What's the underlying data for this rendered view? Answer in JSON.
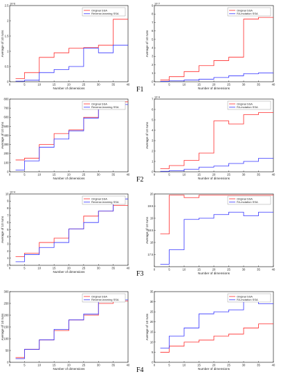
{
  "figure": {
    "row_labels": [
      "F1",
      "F2",
      "F3",
      "F4"
    ],
    "colors": {
      "original": "#ff2a2a",
      "variant": "#3333ff"
    }
  },
  "chart_data": [
    {
      "id": "f1-left",
      "type": "line",
      "title": "",
      "xlabel": "Number of dimensions",
      "ylabel": "Average of 10 runs",
      "xlim": [
        0,
        40
      ],
      "ylim": [
        0,
        2.5
      ],
      "xticks": [
        0,
        5,
        10,
        15,
        20,
        25,
        30,
        35,
        40
      ],
      "yticks": [
        0,
        0.5,
        1,
        1.5,
        2,
        2.5
      ],
      "yexponent": "10^6",
      "legend_position": "top-right",
      "grid": false,
      "series": [
        {
          "name": "Original SSA",
          "color": "#ff2a2a",
          "x": [
            2,
            5,
            10,
            15,
            20,
            25,
            30,
            35
          ],
          "y": [
            0.1,
            0.3,
            0.8,
            0.95,
            1.1,
            1.12,
            1.2,
            2.05
          ]
        },
        {
          "name": "Reverse-learning SSA",
          "color": "#3333ff",
          "x": [
            2,
            5,
            10,
            15,
            20,
            25,
            30,
            35
          ],
          "y": [
            0.02,
            0.05,
            0.3,
            0.4,
            0.5,
            1.1,
            0.95,
            1.2
          ]
        }
      ]
    },
    {
      "id": "f1-right",
      "type": "line",
      "title": "",
      "xlabel": "Number of dimensions",
      "ylabel": "Average of 10 runs",
      "xlim": [
        0,
        40
      ],
      "ylim": [
        0,
        9
      ],
      "xticks": [
        0,
        5,
        10,
        15,
        20,
        25,
        30,
        35,
        40
      ],
      "yticks": [
        0,
        1,
        2,
        3,
        4,
        5,
        6,
        7,
        8,
        9
      ],
      "yexponent": "10^7",
      "legend_position": "top-right",
      "grid": false,
      "series": [
        {
          "name": "Original SSA",
          "color": "#ff2a2a",
          "x": [
            2,
            5,
            10,
            15,
            20,
            25,
            30,
            35
          ],
          "y": [
            0.2,
            0.6,
            1.2,
            1.9,
            2.5,
            2.9,
            7.4,
            7.6
          ]
        },
        {
          "name": "FA-mutation SSA",
          "color": "#3333ff",
          "x": [
            2,
            5,
            10,
            15,
            20,
            25,
            30,
            35
          ],
          "y": [
            0.05,
            0.1,
            0.2,
            0.3,
            0.5,
            0.7,
            0.95,
            1.05
          ]
        }
      ]
    },
    {
      "id": "f2-left",
      "type": "line",
      "title": "",
      "xlabel": "Number of dimensions",
      "ylabel": "Average of 10 runs",
      "xlim": [
        0,
        40
      ],
      "ylim": [
        0,
        800
      ],
      "xticks": [
        0,
        5,
        10,
        15,
        20,
        25,
        30,
        35,
        40
      ],
      "yticks": [
        0,
        100,
        200,
        300,
        400,
        500,
        600,
        700,
        800
      ],
      "yexponent": "",
      "legend_position": "top-right",
      "grid": false,
      "series": [
        {
          "name": "Original SSA",
          "color": "#ff2a2a",
          "x": [
            2,
            5,
            10,
            15,
            20,
            25,
            30,
            35
          ],
          "y": [
            130,
            150,
            300,
            420,
            460,
            600,
            710,
            770
          ]
        },
        {
          "name": "Reverse-learning SSA",
          "color": "#3333ff",
          "x": [
            2,
            5,
            10,
            15,
            20,
            25,
            30,
            35
          ],
          "y": [
            20,
            120,
            270,
            360,
            450,
            590,
            700,
            740
          ]
        }
      ]
    },
    {
      "id": "f2-right",
      "type": "line",
      "title": "",
      "xlabel": "Number of dimensions",
      "ylabel": "Average of 10 runs",
      "xlim": [
        0,
        40
      ],
      "ylim": [
        0,
        7
      ],
      "xticks": [
        0,
        5,
        10,
        15,
        20,
        25,
        30,
        35,
        40
      ],
      "yticks": [
        0,
        1,
        2,
        3,
        4,
        5,
        6,
        7
      ],
      "yexponent": "10^4",
      "legend_position": "top-right",
      "grid": false,
      "series": [
        {
          "name": "Original SSA",
          "color": "#ff2a2a",
          "x": [
            2,
            5,
            10,
            15,
            20,
            25,
            30,
            35
          ],
          "y": [
            0.3,
            0.6,
            1.1,
            1.8,
            4.9,
            4.6,
            5.5,
            5.7
          ]
        },
        {
          "name": "FA-mutation SSA",
          "color": "#3333ff",
          "x": [
            2,
            5,
            10,
            15,
            20,
            25,
            30,
            35
          ],
          "y": [
            0.05,
            0.1,
            0.25,
            0.45,
            0.55,
            0.8,
            1.0,
            1.3
          ]
        }
      ]
    },
    {
      "id": "f3-left",
      "type": "line",
      "title": "",
      "xlabel": "Number of dimensions",
      "ylabel": "Average of 10 runs",
      "xlim": [
        0,
        40
      ],
      "ylim": [
        0,
        10
      ],
      "xticks": [
        0,
        5,
        10,
        15,
        20,
        25,
        30,
        35,
        40
      ],
      "yticks": [
        0,
        1,
        2,
        3,
        4,
        5,
        6,
        7,
        8,
        9,
        10
      ],
      "yexponent": "10^4",
      "legend_position": "top-right",
      "grid": false,
      "series": [
        {
          "name": "Original SSA",
          "color": "#ff2a2a",
          "x": [
            2,
            5,
            10,
            15,
            20,
            25,
            30,
            35
          ],
          "y": [
            1.2,
            1.7,
            3.2,
            3.8,
            5.1,
            6.9,
            7.6,
            8.4
          ]
        },
        {
          "name": "Reverse-learning SSA",
          "color": "#3333ff",
          "x": [
            2,
            5,
            10,
            15,
            20,
            25,
            30,
            35
          ],
          "y": [
            0.5,
            1.5,
            2.5,
            3.2,
            5.1,
            6.0,
            7.6,
            9.3
          ]
        }
      ]
    },
    {
      "id": "f3-right",
      "type": "line",
      "title": "",
      "xlabel": "Number of dimensions",
      "ylabel": "Average of 10 runs",
      "xlim": [
        0,
        40
      ],
      "ylim": [
        17,
        20
      ],
      "xticks": [
        0,
        5,
        10,
        15,
        20,
        25,
        30,
        35,
        40
      ],
      "yticks": [
        17.5,
        18,
        18.5,
        19,
        19.5,
        20
      ],
      "yexponent": "",
      "legend_position": "top-right",
      "grid": false,
      "series": [
        {
          "name": "Original SSA",
          "color": "#ff2a2a",
          "x": [
            2,
            5,
            10,
            15,
            20,
            25,
            30,
            35
          ],
          "y": [
            18.35,
            19.95,
            19.85,
            19.95,
            19.95,
            19.95,
            19.95,
            19.95
          ]
        },
        {
          "name": "FA-mutation SSA",
          "color": "#3333ff",
          "x": [
            2,
            5,
            10,
            15,
            20,
            25,
            30,
            35
          ],
          "y": [
            17.1,
            17.7,
            18.95,
            19.0,
            19.15,
            19.25,
            19.1,
            19.25
          ]
        }
      ]
    },
    {
      "id": "f4-left",
      "type": "line",
      "title": "",
      "xlabel": "Number of dimensions",
      "ylabel": "Average of 10 runs",
      "xlim": [
        0,
        40
      ],
      "ylim": [
        0,
        300
      ],
      "xticks": [
        0,
        5,
        10,
        15,
        20,
        25,
        30,
        35,
        40
      ],
      "yticks": [
        0,
        50,
        100,
        150,
        200,
        250,
        300
      ],
      "yexponent": "",
      "legend_position": "top-right",
      "grid": false,
      "series": [
        {
          "name": "Original SSA",
          "color": "#ff2a2a",
          "x": [
            2,
            5,
            10,
            15,
            20,
            25,
            30,
            35
          ],
          "y": [
            20,
            55,
            95,
            135,
            180,
            200,
            250,
            260
          ]
        },
        {
          "name": "Reverse-learning SSA",
          "color": "#3333ff",
          "x": [
            2,
            5,
            10,
            15,
            20,
            25,
            30,
            35
          ],
          "y": [
            15,
            55,
            95,
            140,
            180,
            205,
            260,
            265
          ]
        }
      ]
    },
    {
      "id": "f4-right",
      "type": "line",
      "title": "",
      "xlabel": "Number of dimensions",
      "ylabel": "Average of 10 runs",
      "xlim": [
        0,
        40
      ],
      "ylim": [
        0,
        35
      ],
      "xticks": [
        0,
        5,
        10,
        15,
        20,
        25,
        30,
        35,
        40
      ],
      "yticks": [
        0,
        5,
        10,
        15,
        20,
        25,
        30,
        35
      ],
      "yexponent": "",
      "legend_position": "top-right",
      "grid": false,
      "series": [
        {
          "name": "Original SSA",
          "color": "#ff2a2a",
          "x": [
            2,
            5,
            10,
            15,
            20,
            25,
            30,
            35
          ],
          "y": [
            5,
            8,
            10,
            11,
            13,
            14,
            17,
            19
          ]
        },
        {
          "name": "FA-mutation SSA",
          "color": "#3333ff",
          "x": [
            2,
            5,
            10,
            15,
            20,
            25,
            30,
            35
          ],
          "y": [
            7,
            13,
            17,
            24,
            25,
            26,
            30,
            29
          ]
        }
      ]
    }
  ]
}
